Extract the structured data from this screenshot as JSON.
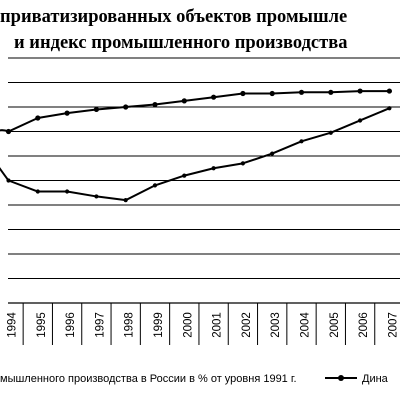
{
  "chart_data": {
    "type": "line",
    "title_lines": [
      "приватизированных объектов промышле",
      "и индекс промышленного производства"
    ],
    "categories": [
      "1994",
      "1995",
      "1996",
      "1997",
      "1998",
      "1999",
      "2000",
      "2001",
      "2002",
      "2003",
      "2004",
      "2005",
      "2006",
      "2007"
    ],
    "ylim": [
      0,
      10
    ],
    "grid": true,
    "series": [
      {
        "name": "Дина",
        "marker": "circle",
        "color": "#000000",
        "values": [
          7.0,
          7.55,
          7.75,
          7.9,
          8.0,
          8.1,
          8.25,
          8.4,
          8.55,
          8.55,
          8.6,
          8.6,
          8.65,
          8.65
        ]
      },
      {
        "name": "мышленного производства в России в % от уровня 1991 г.",
        "marker": "none",
        "color": "#000000",
        "values": [
          5.0,
          4.55,
          4.55,
          4.35,
          4.2,
          4.8,
          5.2,
          5.5,
          5.7,
          6.1,
          6.6,
          6.95,
          7.45,
          7.95
        ]
      }
    ],
    "lead_in": {
      "y_first": 6.35,
      "x_offset": -0.7
    },
    "legend": {
      "position": "bottom"
    }
  }
}
